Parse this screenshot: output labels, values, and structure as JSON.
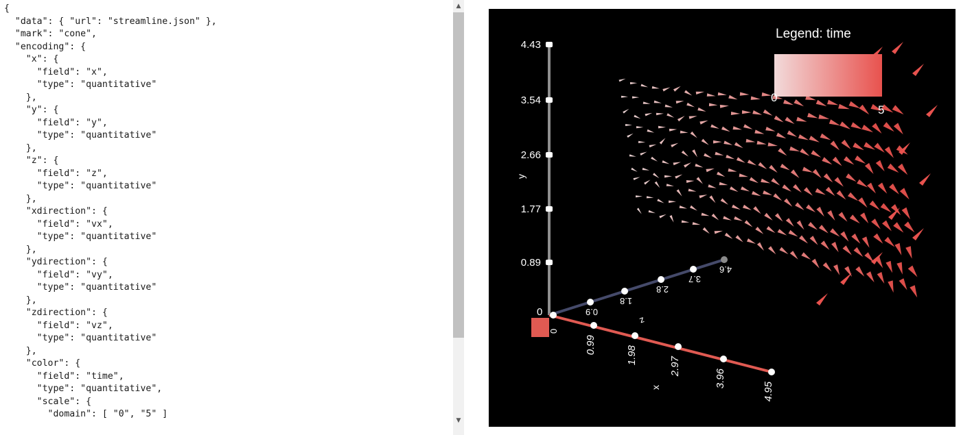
{
  "editor": {
    "code_lines": [
      "{",
      "  \"data\": { \"url\": \"streamline.json\" },",
      "  \"mark\": \"cone\",",
      "  \"encoding\": {",
      "    \"x\": {",
      "      \"field\": \"x\",",
      "      \"type\": \"quantitative\"",
      "    },",
      "    \"y\": {",
      "      \"field\": \"y\",",
      "      \"type\": \"quantitative\"",
      "    },",
      "    \"z\": {",
      "      \"field\": \"z\",",
      "      \"type\": \"quantitative\"",
      "    },",
      "    \"xdirection\": {",
      "      \"field\": \"vx\",",
      "      \"type\": \"quantitative\"",
      "    },",
      "    \"ydirection\": {",
      "      \"field\": \"vy\",",
      "      \"type\": \"quantitative\"",
      "    },",
      "    \"zdirection\": {",
      "      \"field\": \"vz\",",
      "      \"type\": \"quantitative\"",
      "    },",
      "    \"color\": {",
      "      \"field\": \"time\",",
      "      \"type\": \"quantitative\",",
      "      \"scale\": {",
      "        \"domain\": [ \"0\", \"5\" ]"
    ]
  },
  "scrollbar": {
    "up_glyph": "▲",
    "down_glyph": "▼"
  },
  "viewer": {
    "legend": {
      "title": "Legend: time",
      "min_label": "0",
      "max_label": "5",
      "color_low": "#f2dada",
      "color_high": "#e8524e"
    },
    "axes": {
      "y": {
        "label": "y",
        "ticks": [
          "0.89",
          "1.77",
          "2.66",
          "3.54",
          "4.43"
        ],
        "color": "#8f8f8f"
      },
      "x": {
        "label": "x",
        "ticks": [
          "0.99",
          "1.98",
          "2.97",
          "3.96",
          "4.95"
        ],
        "color": "#e05a52"
      },
      "z": {
        "label": "z",
        "ticks": [
          "0.9",
          "1.8",
          "2.8",
          "3.7",
          "4.6"
        ],
        "color": "#454a6a"
      },
      "origin_label": "0",
      "origin_label_x": "0"
    }
  }
}
